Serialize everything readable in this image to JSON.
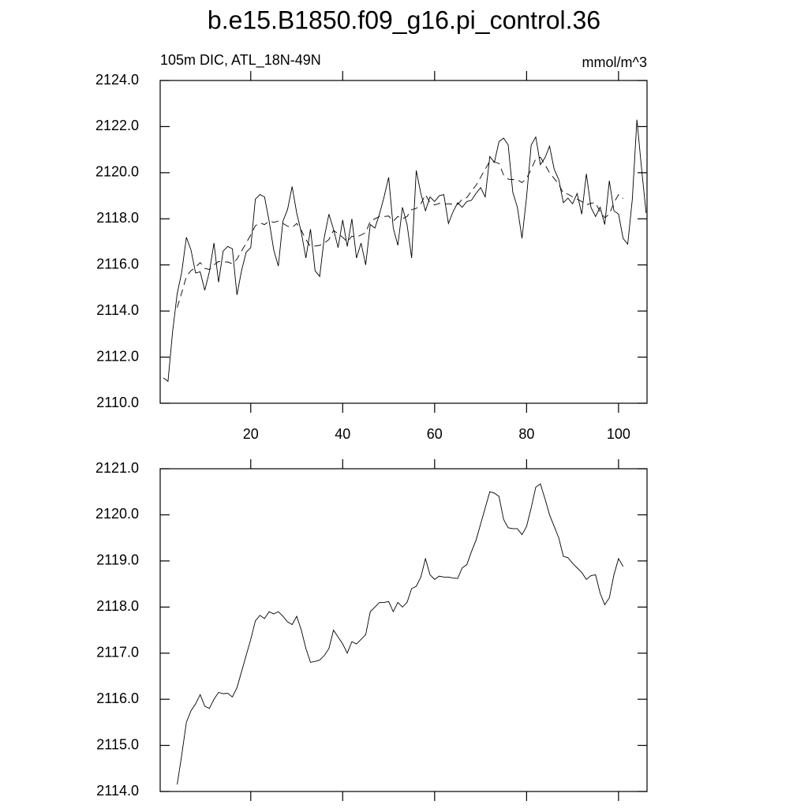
{
  "chart_data": [
    {
      "type": "line",
      "title": "b.e15.B1850.f09_g16.pi_control.36",
      "subtitle": "105m DIC, ATL_18N-49N",
      "units": "mmol/m^3",
      "xlim": [
        0.3,
        106.2
      ],
      "xticks": [
        20,
        40,
        60,
        80,
        100
      ],
      "ylim": [
        2110,
        2124
      ],
      "yticks": [
        {
          "value": 2110,
          "label": "2110.0"
        },
        {
          "value": 2112,
          "label": "2112.0"
        },
        {
          "value": 2114,
          "label": "2114.0"
        },
        {
          "value": 2116,
          "label": "2116.0"
        },
        {
          "value": 2118,
          "label": "2118.0"
        },
        {
          "value": 2120,
          "label": "2120.0"
        },
        {
          "value": 2122,
          "label": "2122.0"
        },
        {
          "value": 2124,
          "label": "2124.0"
        }
      ],
      "series": [
        {
          "color": "#000000",
          "dashed": false,
          "x": [
            1,
            2,
            3,
            4,
            5,
            6,
            7,
            8,
            9,
            10,
            11,
            12,
            13,
            14,
            15,
            16,
            17,
            18,
            19,
            20,
            21,
            22,
            23,
            24,
            25,
            26,
            27,
            28,
            29,
            30,
            31,
            32,
            33,
            34,
            35,
            36,
            37,
            38,
            39,
            40,
            41,
            42,
            43,
            44,
            45,
            46,
            47,
            48,
            49,
            50,
            51,
            52,
            53,
            54,
            55,
            56,
            57,
            58,
            59,
            60,
            61,
            62,
            63,
            64,
            65,
            66,
            67,
            68,
            69,
            70,
            71,
            72,
            73,
            74,
            75,
            76,
            77,
            78,
            79,
            80,
            81,
            82,
            83,
            84,
            85,
            86,
            87,
            88,
            89,
            90,
            91,
            92,
            93,
            94,
            95,
            96,
            97,
            98,
            99,
            100,
            101,
            102,
            103,
            104,
            105,
            106
          ],
          "values": [
            2111.1,
            2110.95,
            2113.1,
            2114.75,
            2115.7,
            2117.2,
            2116.65,
            2115.65,
            2115.7,
            2114.9,
            2115.7,
            2116.95,
            2115.25,
            2116.6,
            2116.8,
            2116.7,
            2114.7,
            2115.75,
            2116.55,
            2116.75,
            2118.85,
            2119.05,
            2118.95,
            2117.9,
            2116.65,
            2115.95,
            2117.9,
            2118.4,
            2119.4,
            2118.25,
            2117.4,
            2116.3,
            2117.55,
            2115.75,
            2115.5,
            2117.2,
            2118.2,
            2117.55,
            2116.75,
            2117.95,
            2116.8,
            2118.0,
            2116.3,
            2116.95,
            2116.0,
            2117.75,
            2117.6,
            2118.2,
            2118.95,
            2119.8,
            2117.6,
            2116.85,
            2118.5,
            2117.75,
            2116.3,
            2120.1,
            2119.1,
            2118.35,
            2118.95,
            2118.75,
            2119.0,
            2119.05,
            2117.8,
            2118.3,
            2118.7,
            2118.5,
            2118.75,
            2118.8,
            2119.1,
            2119.35,
            2118.95,
            2120.7,
            2120.45,
            2121.35,
            2121.5,
            2121.2,
            2119.15,
            2118.5,
            2117.15,
            2118.95,
            2121.2,
            2121.55,
            2120.35,
            2120.65,
            2121.15,
            2120.15,
            2119.7,
            2118.7,
            2118.9,
            2118.65,
            2119.1,
            2118.2,
            2119.95,
            2118.5,
            2118.1,
            2118.5,
            2117.75,
            2119.65,
            2118.35,
            2118.2,
            2117.15,
            2116.9,
            2118.85,
            2122.3,
            2120.2,
            2118.25
          ]
        },
        {
          "color": "#000000",
          "dashed": true,
          "x": [
            4,
            5,
            6,
            7,
            8,
            9,
            10,
            11,
            12,
            13,
            14,
            15,
            16,
            17,
            18,
            19,
            20,
            21,
            22,
            23,
            24,
            25,
            26,
            27,
            28,
            29,
            30,
            31,
            32,
            33,
            34,
            35,
            36,
            37,
            38,
            39,
            40,
            41,
            42,
            43,
            44,
            45,
            46,
            47,
            48,
            49,
            50,
            51,
            52,
            53,
            54,
            55,
            56,
            57,
            58,
            59,
            60,
            61,
            62,
            63,
            64,
            65,
            66,
            67,
            68,
            69,
            70,
            71,
            72,
            73,
            74,
            75,
            76,
            77,
            78,
            79,
            80,
            81,
            82,
            83,
            84,
            85,
            86,
            87,
            88,
            89,
            90,
            91,
            92,
            93,
            94,
            95,
            96,
            97,
            98,
            99,
            100,
            101
          ],
          "values": [
            2114.15,
            2114.8,
            2115.5,
            2115.75,
            2115.9,
            2116.1,
            2115.85,
            2115.8,
            2116.0,
            2116.15,
            2116.12,
            2116.13,
            2116.05,
            2116.25,
            2116.6,
            2116.95,
            2117.3,
            2117.7,
            2117.82,
            2117.75,
            2117.9,
            2117.85,
            2117.9,
            2117.8,
            2117.68,
            2117.62,
            2117.8,
            2117.5,
            2117.1,
            2116.8,
            2116.82,
            2116.85,
            2116.95,
            2117.1,
            2117.5,
            2117.35,
            2117.2,
            2117.0,
            2117.25,
            2117.2,
            2117.3,
            2117.4,
            2117.9,
            2118.0,
            2118.1,
            2118.1,
            2118.12,
            2117.9,
            2118.1,
            2118.0,
            2118.1,
            2118.4,
            2118.45,
            2118.65,
            2119.05,
            2118.7,
            2118.6,
            2118.67,
            2118.65,
            2118.65,
            2118.63,
            2118.62,
            2118.85,
            2118.92,
            2119.2,
            2119.45,
            2119.8,
            2120.15,
            2120.5,
            2120.47,
            2120.4,
            2119.9,
            2119.72,
            2119.7,
            2119.7,
            2119.57,
            2119.75,
            2120.15,
            2120.6,
            2120.67,
            2120.35,
            2120.0,
            2119.75,
            2119.5,
            2119.1,
            2119.07,
            2118.95,
            2118.85,
            2118.75,
            2118.6,
            2118.68,
            2118.7,
            2118.3,
            2118.05,
            2118.2,
            2118.7,
            2119.05,
            2118.88
          ]
        }
      ]
    },
    {
      "type": "line",
      "xlim": [
        0.3,
        106.2
      ],
      "xticks": [
        20,
        40,
        60,
        80,
        100
      ],
      "ylim": [
        2114,
        2121
      ],
      "yticks": [
        {
          "value": 2114,
          "label": "2114.0"
        },
        {
          "value": 2115,
          "label": "2115.0"
        },
        {
          "value": 2116,
          "label": "2116.0"
        },
        {
          "value": 2117,
          "label": "2117.0"
        },
        {
          "value": 2118,
          "label": "2118.0"
        },
        {
          "value": 2119,
          "label": "2119.0"
        },
        {
          "value": 2120,
          "label": "2120.0"
        },
        {
          "value": 2121,
          "label": "2121.0"
        }
      ],
      "series": [
        {
          "color": "#000000",
          "dashed": false,
          "x": [
            4,
            5,
            6,
            7,
            8,
            9,
            10,
            11,
            12,
            13,
            14,
            15,
            16,
            17,
            18,
            19,
            20,
            21,
            22,
            23,
            24,
            25,
            26,
            27,
            28,
            29,
            30,
            31,
            32,
            33,
            34,
            35,
            36,
            37,
            38,
            39,
            40,
            41,
            42,
            43,
            44,
            45,
            46,
            47,
            48,
            49,
            50,
            51,
            52,
            53,
            54,
            55,
            56,
            57,
            58,
            59,
            60,
            61,
            62,
            63,
            64,
            65,
            66,
            67,
            68,
            69,
            70,
            71,
            72,
            73,
            74,
            75,
            76,
            77,
            78,
            79,
            80,
            81,
            82,
            83,
            84,
            85,
            86,
            87,
            88,
            89,
            90,
            91,
            92,
            93,
            94,
            95,
            96,
            97,
            98,
            99,
            100,
            101
          ],
          "values": [
            2114.15,
            2114.8,
            2115.5,
            2115.75,
            2115.9,
            2116.1,
            2115.85,
            2115.8,
            2116.0,
            2116.15,
            2116.12,
            2116.13,
            2116.05,
            2116.25,
            2116.6,
            2116.95,
            2117.3,
            2117.7,
            2117.82,
            2117.75,
            2117.9,
            2117.85,
            2117.9,
            2117.8,
            2117.68,
            2117.62,
            2117.8,
            2117.5,
            2117.1,
            2116.8,
            2116.82,
            2116.85,
            2116.95,
            2117.1,
            2117.5,
            2117.35,
            2117.2,
            2117.0,
            2117.25,
            2117.2,
            2117.3,
            2117.4,
            2117.9,
            2118.0,
            2118.1,
            2118.1,
            2118.12,
            2117.9,
            2118.1,
            2118.0,
            2118.1,
            2118.4,
            2118.45,
            2118.65,
            2119.05,
            2118.7,
            2118.6,
            2118.67,
            2118.65,
            2118.65,
            2118.63,
            2118.62,
            2118.85,
            2118.92,
            2119.2,
            2119.45,
            2119.8,
            2120.15,
            2120.5,
            2120.47,
            2120.4,
            2119.9,
            2119.72,
            2119.7,
            2119.7,
            2119.57,
            2119.75,
            2120.15,
            2120.6,
            2120.67,
            2120.35,
            2120.0,
            2119.75,
            2119.5,
            2119.1,
            2119.07,
            2118.95,
            2118.85,
            2118.75,
            2118.6,
            2118.68,
            2118.7,
            2118.3,
            2118.05,
            2118.2,
            2118.7,
            2119.05,
            2118.88
          ]
        }
      ]
    }
  ]
}
